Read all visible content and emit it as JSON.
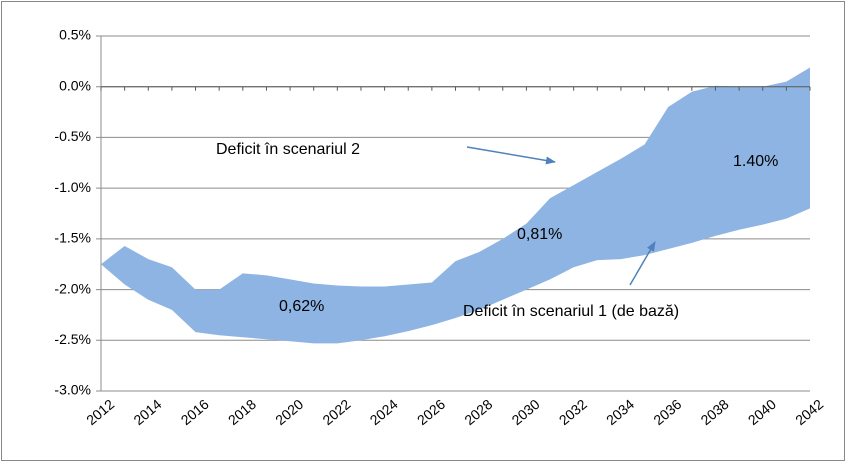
{
  "chart_data": {
    "type": "band",
    "x": [
      2012,
      2013,
      2014,
      2015,
      2016,
      2017,
      2018,
      2019,
      2020,
      2021,
      2022,
      2023,
      2024,
      2025,
      2026,
      2027,
      2028,
      2029,
      2030,
      2031,
      2032,
      2033,
      2034,
      2035,
      2036,
      2037,
      2038,
      2039,
      2040,
      2041,
      2042
    ],
    "series": [
      {
        "name": "Deficit în scenariul 2",
        "color": "#8db4e2",
        "values": [
          -1.75,
          -1.57,
          -1.7,
          -1.78,
          -2.0,
          -2.0,
          -1.84,
          -1.86,
          -1.9,
          -1.94,
          -1.96,
          -1.97,
          -1.97,
          -1.95,
          -1.93,
          -1.72,
          -1.63,
          -1.5,
          -1.35,
          -1.1,
          -0.97,
          -0.84,
          -0.71,
          -0.57,
          -0.2,
          -0.05,
          0.01,
          0.0,
          0.0,
          0.05,
          0.19
        ]
      },
      {
        "name": "Deficit în scenariul 1 (de bază)",
        "color": "#8db4e2",
        "values": [
          -1.75,
          -1.95,
          -2.1,
          -2.2,
          -2.42,
          -2.45,
          -2.47,
          -2.49,
          -2.51,
          -2.53,
          -2.53,
          -2.5,
          -2.46,
          -2.41,
          -2.35,
          -2.28,
          -2.2,
          -2.1,
          -2.0,
          -1.9,
          -1.78,
          -1.71,
          -1.7,
          -1.66,
          -1.6,
          -1.54,
          -1.47,
          -1.41,
          -1.36,
          -1.3,
          -1.2
        ]
      }
    ],
    "annotations": [
      "0,62%",
      "0,81%",
      "1.40%"
    ],
    "xlim": [
      2012,
      2042
    ],
    "xticks": [
      2012,
      2014,
      2016,
      2018,
      2020,
      2022,
      2024,
      2026,
      2028,
      2030,
      2032,
      2034,
      2036,
      2038,
      2040,
      2042
    ],
    "ylim": [
      -3.0,
      0.5
    ],
    "yticks": [
      {
        "value": 0.5,
        "label": "0.5%"
      },
      {
        "value": 0.0,
        "label": "0.0%"
      },
      {
        "value": -0.5,
        "label": "-0.5%"
      },
      {
        "value": -1.0,
        "label": "-1.0%"
      },
      {
        "value": -1.5,
        "label": "-1.5%"
      },
      {
        "value": -2.0,
        "label": "-2.0%"
      },
      {
        "value": -2.5,
        "label": "-2.5%"
      },
      {
        "value": -3.0,
        "label": "-3.0%"
      }
    ],
    "grid": true
  }
}
